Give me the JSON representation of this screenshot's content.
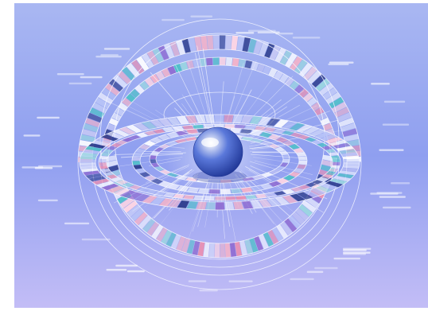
{
  "colors": {
    "bg_top": "#a9b7f2",
    "bg_mid": "#8f9ff0",
    "bg_bottom": "#c3bdf6",
    "ring_light": "#eef1ff",
    "ring_stroke": "#f7f8ff",
    "sphere_light": "#ffffff",
    "sphere_mid": "#5a78da",
    "sphere_dark": "#1d3393",
    "accent_pink": "#e98fb2",
    "accent_red": "#c84a6d",
    "accent_teal": "#4ec0c8",
    "accent_navy": "#2a3a8a"
  },
  "segment_palette": [
    "#ffffff",
    "#f1f3ff",
    "#d7ddfb",
    "#c7c9f5",
    "#e98fb2",
    "#f4b3c9",
    "#4ec0c8",
    "#9ad7e0",
    "#2a3a8a",
    "#8f6bd1",
    "#ffd6e3",
    "#b8c3f7"
  ]
}
